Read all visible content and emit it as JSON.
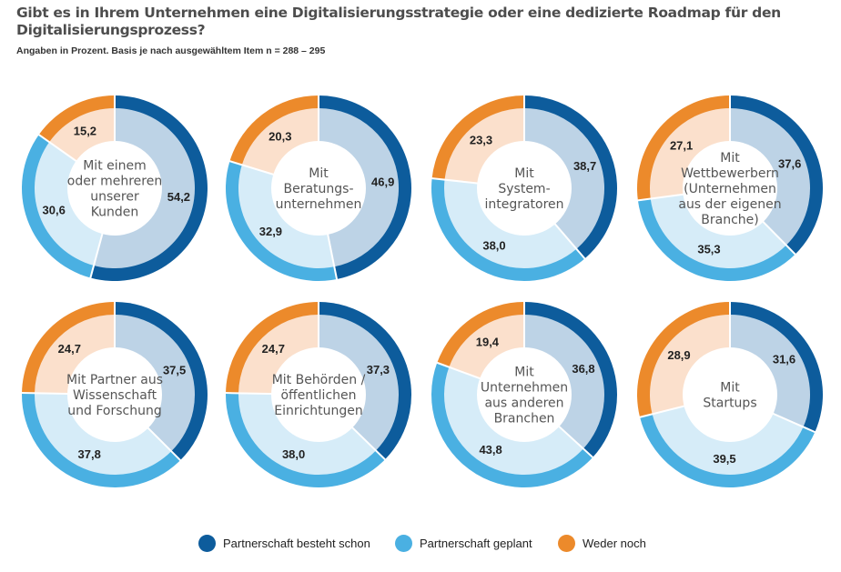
{
  "title": "Gibt es in Ihrem Unternehmen eine Digitalisierungsstrategie oder eine dedizierte Roadmap für den Digitalisierungsprozess?",
  "subtitle": "Angaben in Prozent. Basis je nach ausgewähltem Item n = 288 – 295",
  "colors": {
    "besteht": "#0d5c9c",
    "geplant": "#4ab0e2",
    "weder": "#ec8a2b",
    "inner_besteht": "#bdd3e6",
    "inner_geplant": "#d6ecf8",
    "inner_weder": "#fbe0cc"
  },
  "legend": [
    {
      "label": "Partnerschaft besteht schon",
      "color": "#0d5c9c"
    },
    {
      "label": "Partnerschaft geplant",
      "color": "#4ab0e2"
    },
    {
      "label": "Weder noch",
      "color": "#ec8a2b"
    }
  ],
  "chart_data": [
    {
      "type": "pie",
      "label_lines": [
        "Mit einem",
        "oder mehreren",
        "unserer",
        "Kunden"
      ],
      "values": [
        54.2,
        30.6,
        15.2
      ],
      "value_labels": [
        "54,2",
        "30,6",
        "15,2"
      ],
      "series": [
        "Partnerschaft besteht schon",
        "Partnerschaft geplant",
        "Weder noch"
      ]
    },
    {
      "type": "pie",
      "label_lines": [
        "Mit",
        "Beratungs-",
        "unternehmen"
      ],
      "values": [
        46.9,
        32.9,
        20.3
      ],
      "value_labels": [
        "46,9",
        "32,9",
        "20,3"
      ],
      "series": [
        "Partnerschaft besteht schon",
        "Partnerschaft geplant",
        "Weder noch"
      ]
    },
    {
      "type": "pie",
      "label_lines": [
        "Mit",
        "System-",
        "integratoren"
      ],
      "values": [
        38.7,
        38.0,
        23.3
      ],
      "value_labels": [
        "38,7",
        "38,0",
        "23,3"
      ],
      "series": [
        "Partnerschaft besteht schon",
        "Partnerschaft geplant",
        "Weder noch"
      ]
    },
    {
      "type": "pie",
      "label_lines": [
        "Mit",
        "Wettbewerbern",
        "(Unternehmen",
        "aus der eigenen",
        "Branche)"
      ],
      "values": [
        37.6,
        35.3,
        27.1
      ],
      "value_labels": [
        "37,6",
        "35,3",
        "27,1"
      ],
      "series": [
        "Partnerschaft besteht schon",
        "Partnerschaft geplant",
        "Weder noch"
      ]
    },
    {
      "type": "pie",
      "label_lines": [
        "Mit Partner aus",
        "Wissenschaft",
        "und Forschung"
      ],
      "values": [
        37.5,
        37.8,
        24.7
      ],
      "value_labels": [
        "37,5",
        "37,8",
        "24,7"
      ],
      "series": [
        "Partnerschaft besteht schon",
        "Partnerschaft geplant",
        "Weder noch"
      ]
    },
    {
      "type": "pie",
      "label_lines": [
        "Mit Behörden /",
        "öffentlichen",
        "Einrichtungen"
      ],
      "values": [
        37.3,
        38.0,
        24.7
      ],
      "value_labels": [
        "37,3",
        "38,0",
        "24,7"
      ],
      "series": [
        "Partnerschaft besteht schon",
        "Partnerschaft geplant",
        "Weder noch"
      ]
    },
    {
      "type": "pie",
      "label_lines": [
        "Mit",
        "Unternehmen",
        "aus anderen",
        "Branchen"
      ],
      "values": [
        36.8,
        43.8,
        19.4
      ],
      "value_labels": [
        "36,8",
        "43,8",
        "19,4"
      ],
      "series": [
        "Partnerschaft besteht schon",
        "Partnerschaft geplant",
        "Weder noch"
      ]
    },
    {
      "type": "pie",
      "label_lines": [
        "Mit",
        "Startups"
      ],
      "values": [
        31.6,
        39.5,
        28.9
      ],
      "value_labels": [
        "31,6",
        "39,5",
        "28,9"
      ],
      "series": [
        "Partnerschaft besteht schon",
        "Partnerschaft geplant",
        "Weder noch"
      ]
    }
  ]
}
